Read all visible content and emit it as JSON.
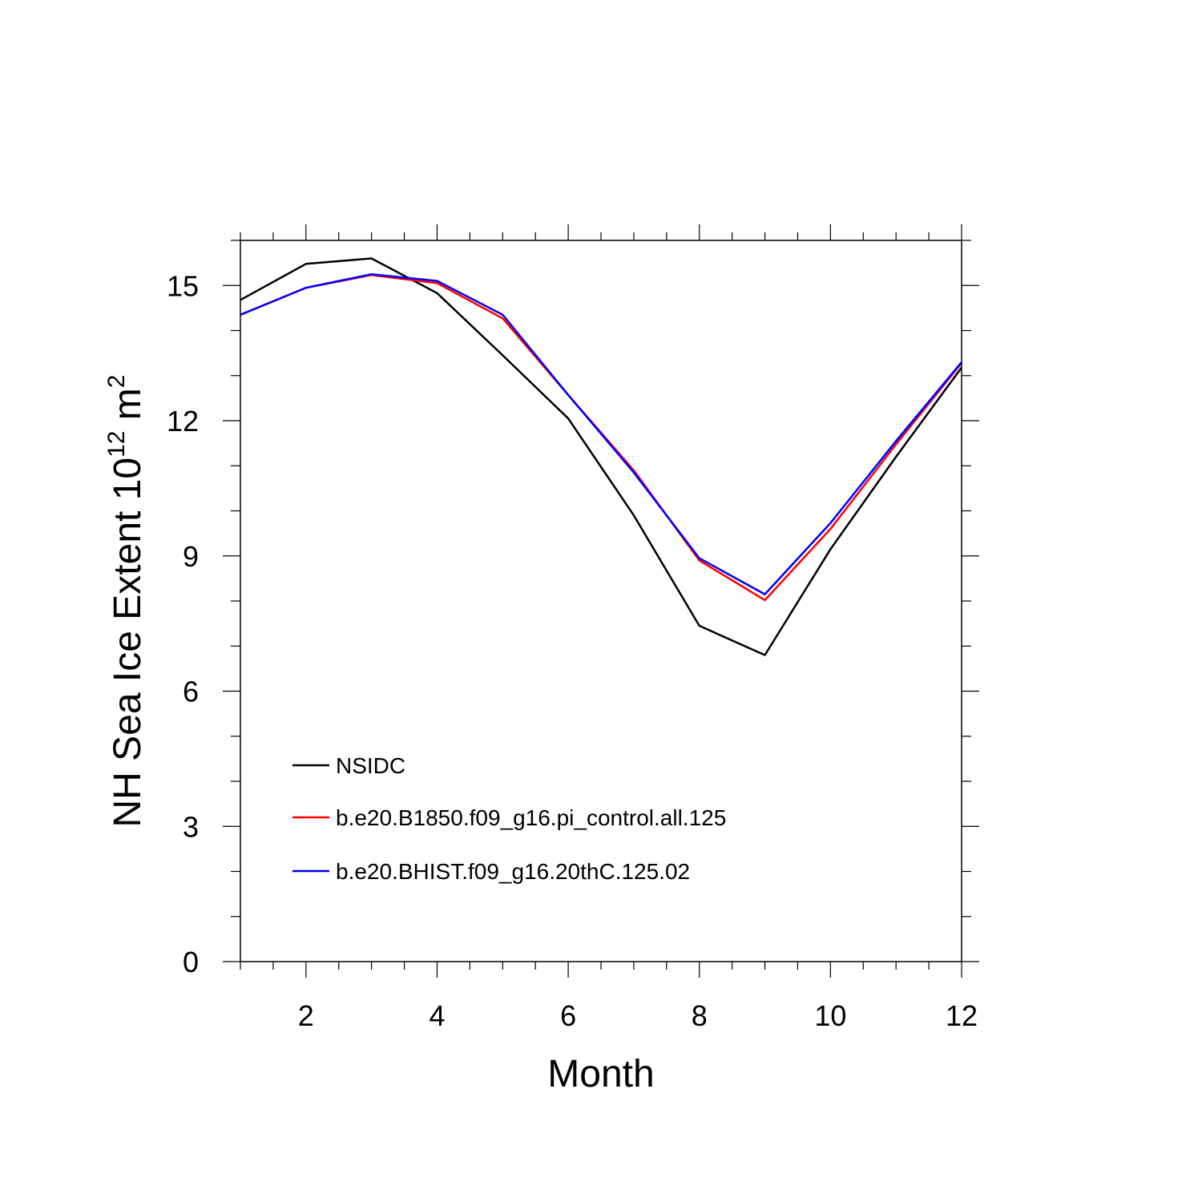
{
  "chart_data": {
    "type": "line",
    "title": "",
    "xlabel": "Month",
    "ylabel_main": "NH Sea Ice Extent 10",
    "ylabel_exponent": "12",
    "ylabel_unit": " m",
    "ylabel_unit_exponent": "2",
    "xlim": [
      1,
      12
    ],
    "ylim": [
      0,
      16
    ],
    "xticks": [
      2,
      4,
      6,
      8,
      10,
      12
    ],
    "yticks": [
      0,
      3,
      6,
      9,
      12,
      15
    ],
    "x": [
      1,
      2,
      3,
      4,
      5,
      6,
      7,
      8,
      9,
      10,
      11,
      12
    ],
    "series": [
      {
        "name": "NSIDC",
        "color": "#000000",
        "values": [
          14.68,
          15.48,
          15.6,
          14.83,
          13.45,
          12.05,
          9.9,
          7.45,
          6.8,
          9.15,
          11.2,
          13.18
        ]
      },
      {
        "name": "b.e20.B1850.f09_g16.pi_control.all.125",
        "color": "#ff0000",
        "values": [
          14.35,
          14.95,
          15.23,
          15.05,
          14.27,
          12.57,
          10.9,
          8.9,
          8.02,
          9.6,
          11.48,
          13.28
        ]
      },
      {
        "name": "b.e20.BHIST.f09_g16.20thC.125.02",
        "color": "#0000ff",
        "values": [
          14.35,
          14.95,
          15.25,
          15.1,
          14.35,
          12.57,
          10.85,
          8.95,
          8.15,
          9.73,
          11.55,
          13.3
        ]
      }
    ],
    "legend_position": "bottom-left"
  }
}
